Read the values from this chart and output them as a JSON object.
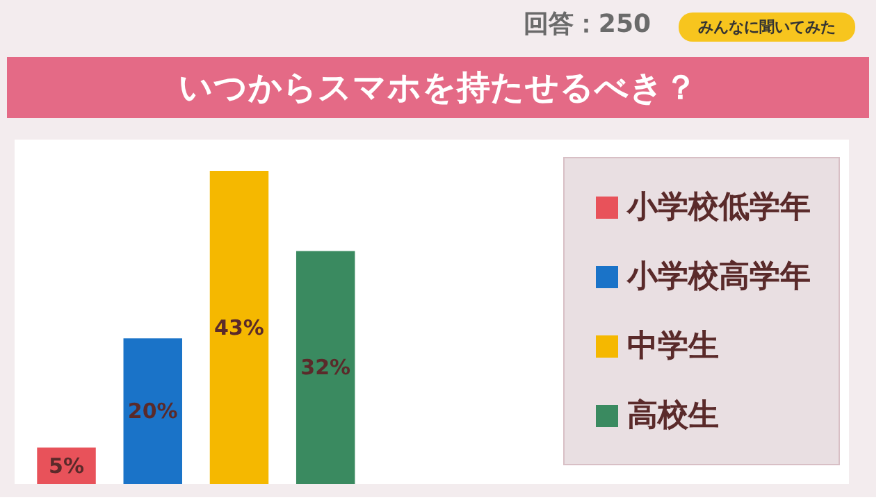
{
  "chart_data": {
    "type": "bar",
    "title": "いつからスマホを持たせるべき？",
    "annotations": [
      "回答：250",
      "みんなに聞いてみた"
    ],
    "categories": [
      null,
      null,
      null,
      null
    ],
    "stacked": true,
    "series": [
      {
        "name": "小学校低学年",
        "color": "#e8525a",
        "values": [
          5,
          null,
          null,
          null
        ],
        "value_labels": [
          "5%",
          null,
          null,
          null
        ]
      },
      {
        "name": "小学校高学年",
        "color": "#1a73c8",
        "values": [
          null,
          20,
          null,
          null
        ],
        "value_labels": [
          null,
          "20%",
          null,
          null
        ]
      },
      {
        "name": "中学生",
        "color": "#f5b800",
        "values": [
          null,
          null,
          43,
          null
        ],
        "value_labels": [
          null,
          null,
          "43%",
          null
        ]
      },
      {
        "name": "高校生",
        "color": "#3a8a60",
        "values": [
          null,
          null,
          null,
          32
        ],
        "value_labels": [
          null,
          null,
          null,
          "32%"
        ]
      }
    ],
    "tick_labels": false,
    "grid": false,
    "legend": "right"
  }
}
